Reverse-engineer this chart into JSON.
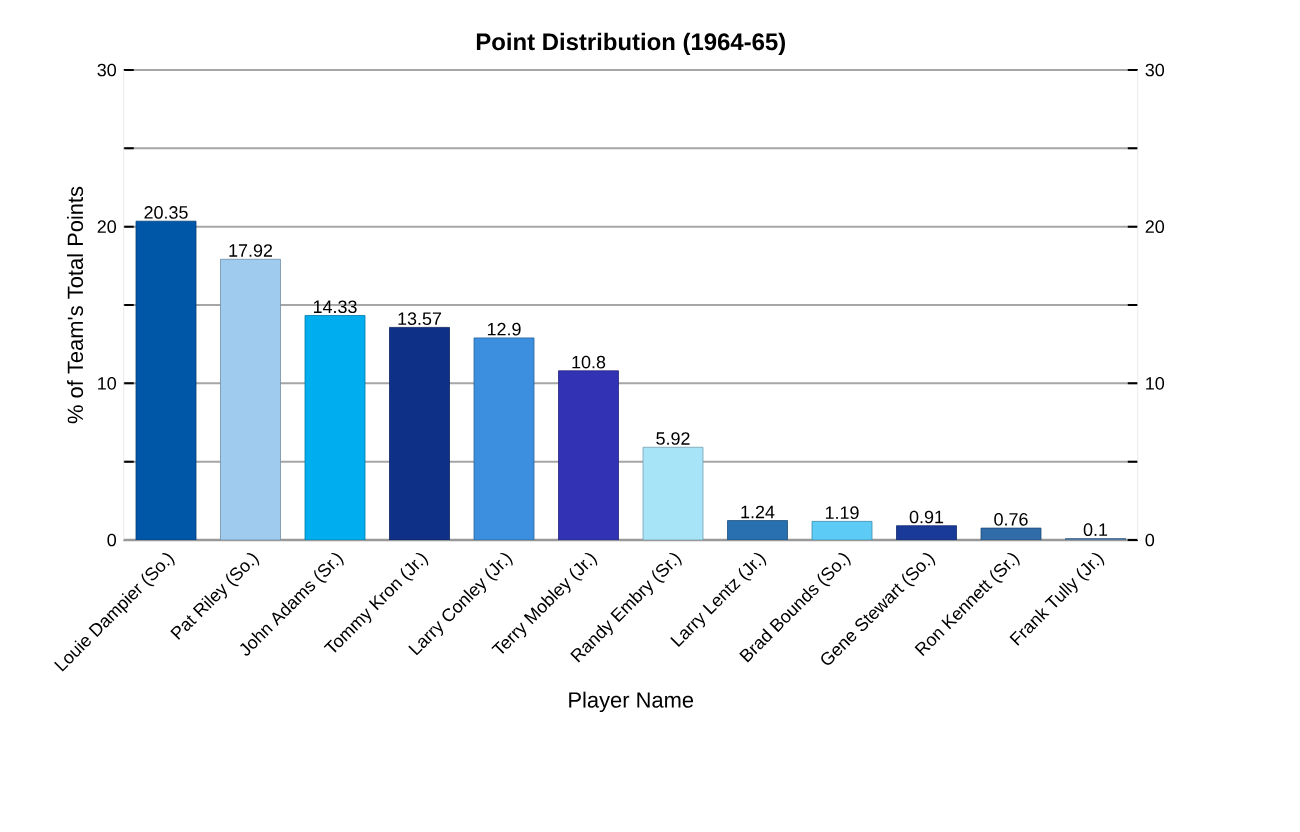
{
  "chart_data": {
    "type": "bar",
    "title": "Point Distribution (1964-65)",
    "xlabel": "Player Name",
    "ylabel": "% of Team's Total Points",
    "categories": [
      "Louie Dampier (So.)",
      "Pat Riley (So.)",
      "John Adams (Sr.)",
      "Tommy Kron (Jr.)",
      "Larry Conley (Jr.)",
      "Terry Mobley (Jr.)",
      "Randy Embry (Sr.)",
      "Larry Lentz (Jr.)",
      "Brad Bounds (So.)",
      "Gene Stewart (So.)",
      "Ron Kennett (Sr.)",
      "Frank Tully (Jr.)"
    ],
    "values": [
      20.35,
      17.92,
      14.33,
      13.57,
      12.9,
      10.8,
      5.92,
      1.24,
      1.19,
      0.91,
      0.76,
      0.1
    ],
    "colors": [
      "#0057a8",
      "#9ecbee",
      "#00aeef",
      "#0f3087",
      "#3c8fdf",
      "#3232b4",
      "#a8e4f8",
      "#2870b0",
      "#5ccbf5",
      "#1a3a9a",
      "#2f6ca8",
      "#5a8ab8"
    ],
    "ylim": [
      0,
      30
    ],
    "yticks": [
      0,
      {
        "value": 5,
        "label": null
      },
      10,
      {
        "value": 15,
        "label": null
      },
      20,
      {
        "value": 25,
        "label": null
      },
      30
    ],
    "y2lim": [
      0,
      30
    ],
    "y2ticks": [
      0,
      {
        "value": 5,
        "label": null
      },
      10,
      {
        "value": 15,
        "label": null
      },
      20,
      {
        "value": 25,
        "label": null
      },
      30
    ],
    "grid": "y",
    "data_labels": true
  }
}
